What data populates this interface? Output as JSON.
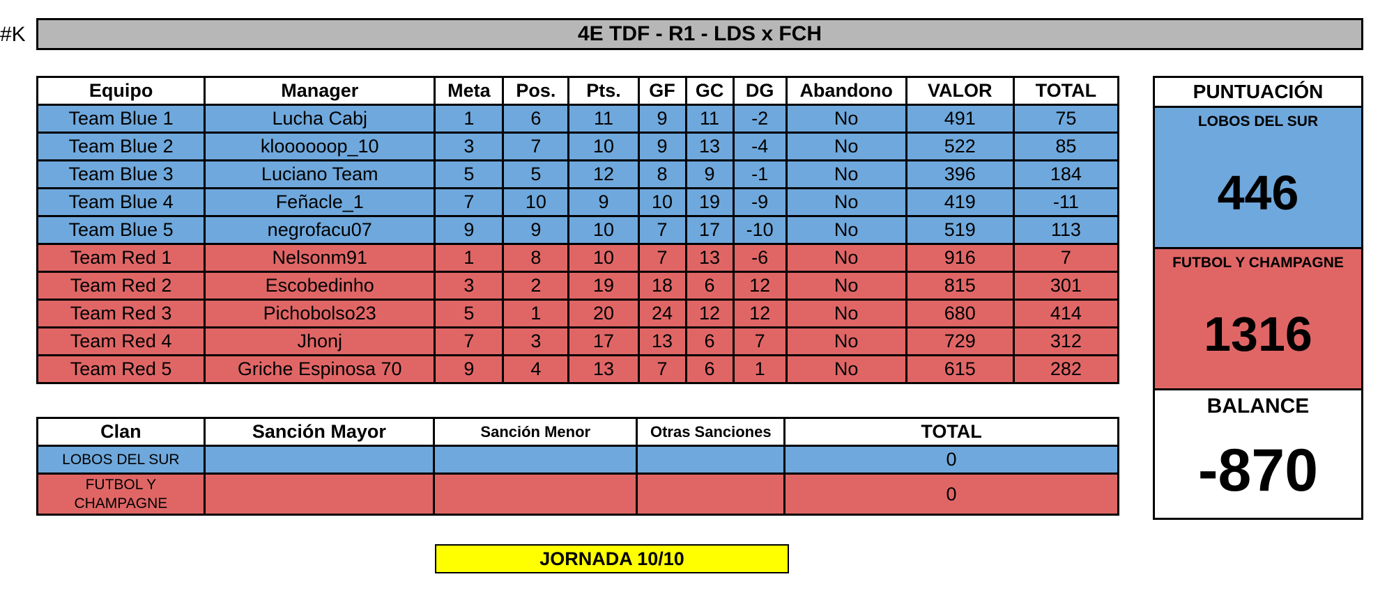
{
  "tag": "#K",
  "title": "4E TDF - R1 - LDS x FCH",
  "colors": {
    "blue": "#6fa8dc",
    "red": "#e06666",
    "header_bar": "#b7b7b7",
    "jornada": "#ffff00"
  },
  "main_table": {
    "headers": [
      "Equipo",
      "Manager",
      "Meta",
      "Pos.",
      "Pts.",
      "GF",
      "GC",
      "DG",
      "Abandono",
      "VALOR",
      "TOTAL"
    ],
    "rows": [
      {
        "team": "blue",
        "cells": [
          "Team Blue 1",
          "Lucha Cabj",
          "1",
          "6",
          "11",
          "9",
          "11",
          "-2",
          "No",
          "491",
          "75"
        ]
      },
      {
        "team": "blue",
        "cells": [
          "Team Blue 2",
          "kloooooop_10",
          "3",
          "7",
          "10",
          "9",
          "13",
          "-4",
          "No",
          "522",
          "85"
        ]
      },
      {
        "team": "blue",
        "cells": [
          "Team Blue 3",
          "Luciano Team",
          "5",
          "5",
          "12",
          "8",
          "9",
          "-1",
          "No",
          "396",
          "184"
        ]
      },
      {
        "team": "blue",
        "cells": [
          "Team Blue 4",
          "Feñacle_1",
          "7",
          "10",
          "9",
          "10",
          "19",
          "-9",
          "No",
          "419",
          "-11"
        ]
      },
      {
        "team": "blue",
        "cells": [
          "Team Blue 5",
          "negrofacu07",
          "9",
          "9",
          "10",
          "7",
          "17",
          "-10",
          "No",
          "519",
          "113"
        ]
      },
      {
        "team": "red",
        "cells": [
          "Team Red 1",
          "Nelsonm91",
          "1",
          "8",
          "10",
          "7",
          "13",
          "-6",
          "No",
          "916",
          "7"
        ]
      },
      {
        "team": "red",
        "cells": [
          "Team Red 2",
          "Escobedinho",
          "3",
          "2",
          "19",
          "18",
          "6",
          "12",
          "No",
          "815",
          "301"
        ]
      },
      {
        "team": "red",
        "cells": [
          "Team Red 3",
          "Pichobolso23",
          "5",
          "1",
          "20",
          "24",
          "12",
          "12",
          "No",
          "680",
          "414"
        ]
      },
      {
        "team": "red",
        "cells": [
          "Team Red 4",
          "Jhonj",
          "7",
          "3",
          "17",
          "13",
          "6",
          "7",
          "No",
          "729",
          "312"
        ]
      },
      {
        "team": "red",
        "cells": [
          "Team Red 5",
          "Griche Espinosa 70",
          "9",
          "4",
          "13",
          "7",
          "6",
          "1",
          "No",
          "615",
          "282"
        ]
      }
    ]
  },
  "sanctions": {
    "headers": [
      "Clan",
      "Sanción Mayor",
      "Sanción Menor",
      "Otras Sanciones",
      "TOTAL"
    ],
    "rows": [
      {
        "team": "blue",
        "clan": "LOBOS DEL SUR",
        "mayor": "",
        "menor": "",
        "otras": "",
        "total": "0"
      },
      {
        "team": "red",
        "clan": "FUTBOL Y CHAMPAGNE",
        "mayor": "",
        "menor": "",
        "otras": "",
        "total": "0"
      }
    ]
  },
  "score_panel": {
    "heading": "PUNTUACIÓN",
    "blue_label": "LOBOS DEL SUR",
    "blue_score": "446",
    "red_label": "FUTBOL Y CHAMPAGNE",
    "red_score": "1316",
    "balance_label": "BALANCE",
    "balance_value": "-870"
  },
  "jornada": "JORNADA 10/10"
}
